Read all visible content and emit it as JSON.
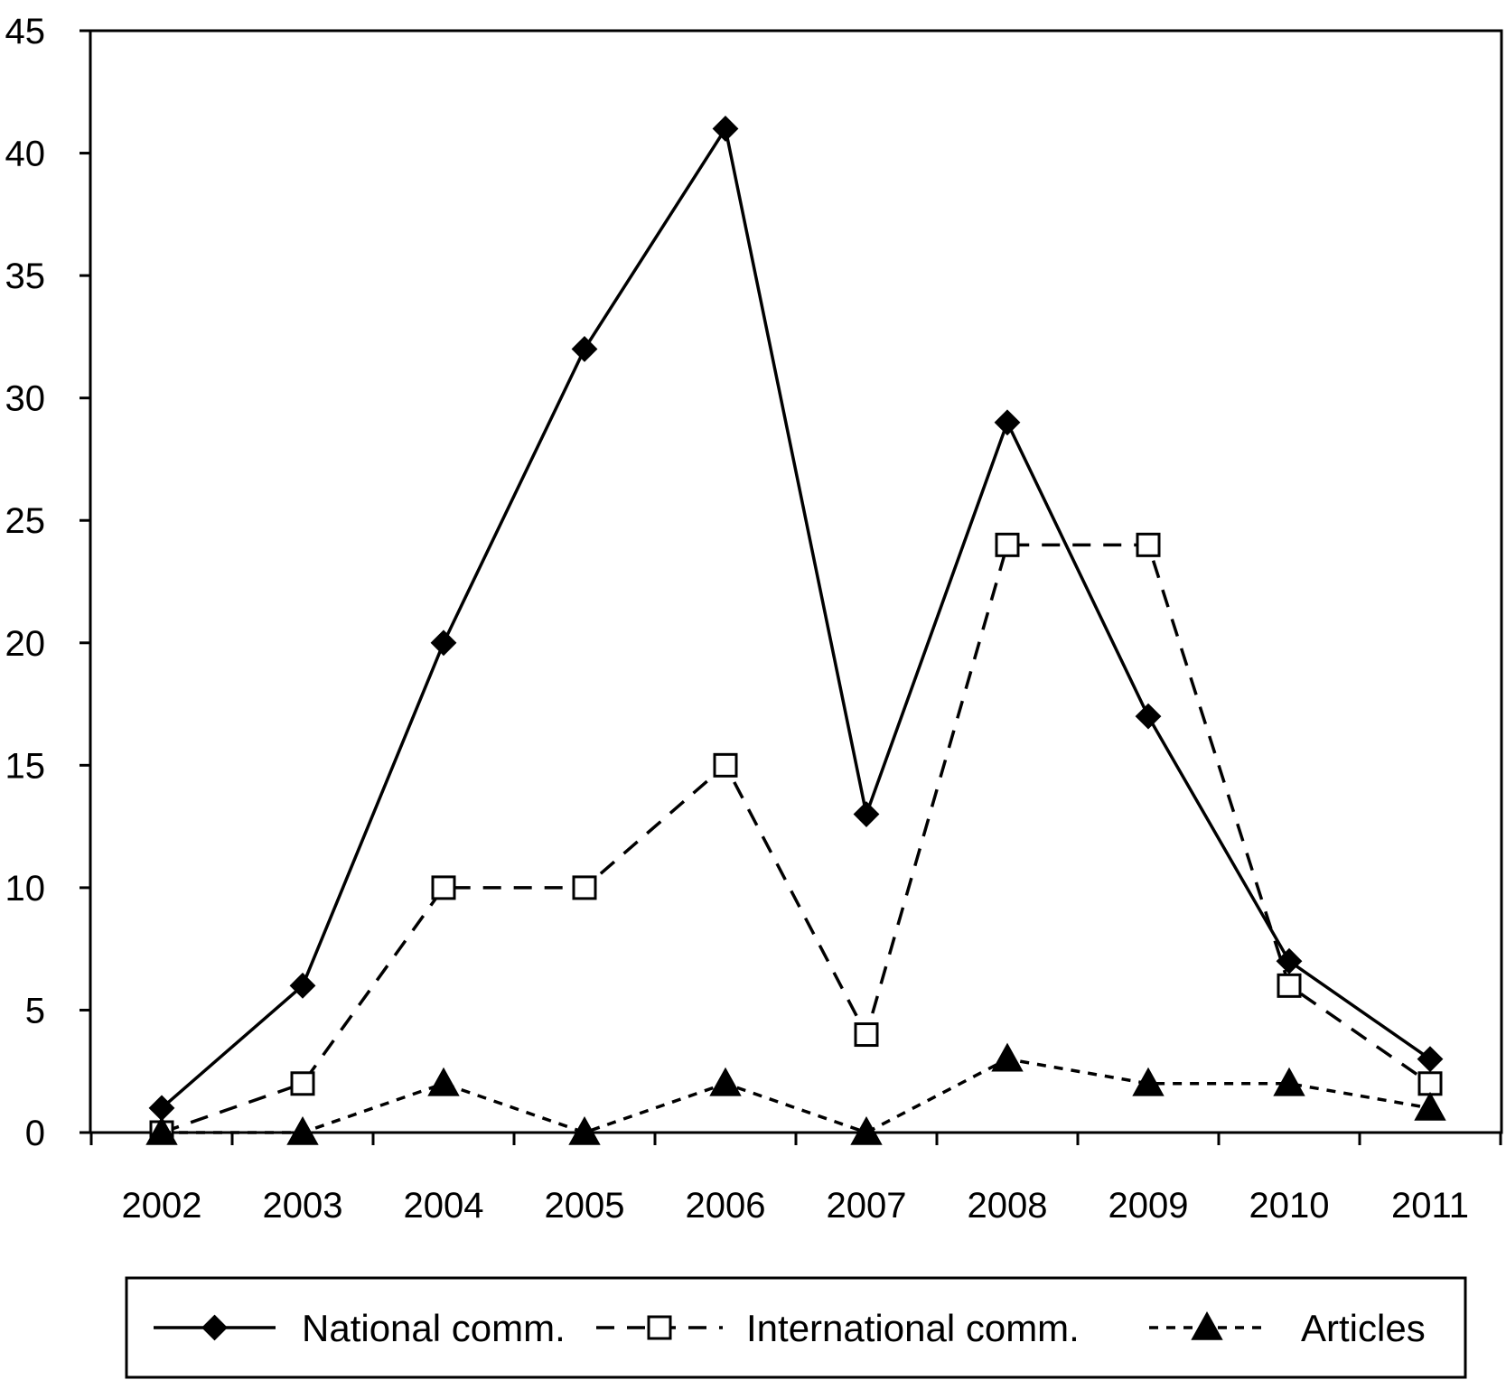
{
  "chart_data": {
    "type": "line",
    "title": "",
    "xlabel": "",
    "ylabel": "",
    "categories": [
      "2002",
      "2003",
      "2004",
      "2005",
      "2006",
      "2007",
      "2008",
      "2009",
      "2010",
      "2011"
    ],
    "ylim": [
      0,
      45
    ],
    "yticks": [
      0,
      5,
      10,
      15,
      20,
      25,
      30,
      35,
      40,
      45
    ],
    "grid": false,
    "legend_position": "bottom",
    "series": [
      {
        "name": "National comm.",
        "values": [
          1,
          6,
          20,
          32,
          41,
          13,
          29,
          17,
          7,
          3
        ],
        "marker": "diamond",
        "line": "solid"
      },
      {
        "name": "International comm.",
        "values": [
          0,
          2,
          10,
          10,
          15,
          4,
          24,
          24,
          6,
          2
        ],
        "marker": "open-square",
        "line": "long-dash"
      },
      {
        "name": "Articles",
        "values": [
          0,
          0,
          2,
          0,
          2,
          0,
          3,
          2,
          2,
          1
        ],
        "marker": "triangle",
        "line": "short-dash"
      }
    ],
    "colors": {
      "line": "#000000",
      "background": "#ffffff"
    }
  }
}
